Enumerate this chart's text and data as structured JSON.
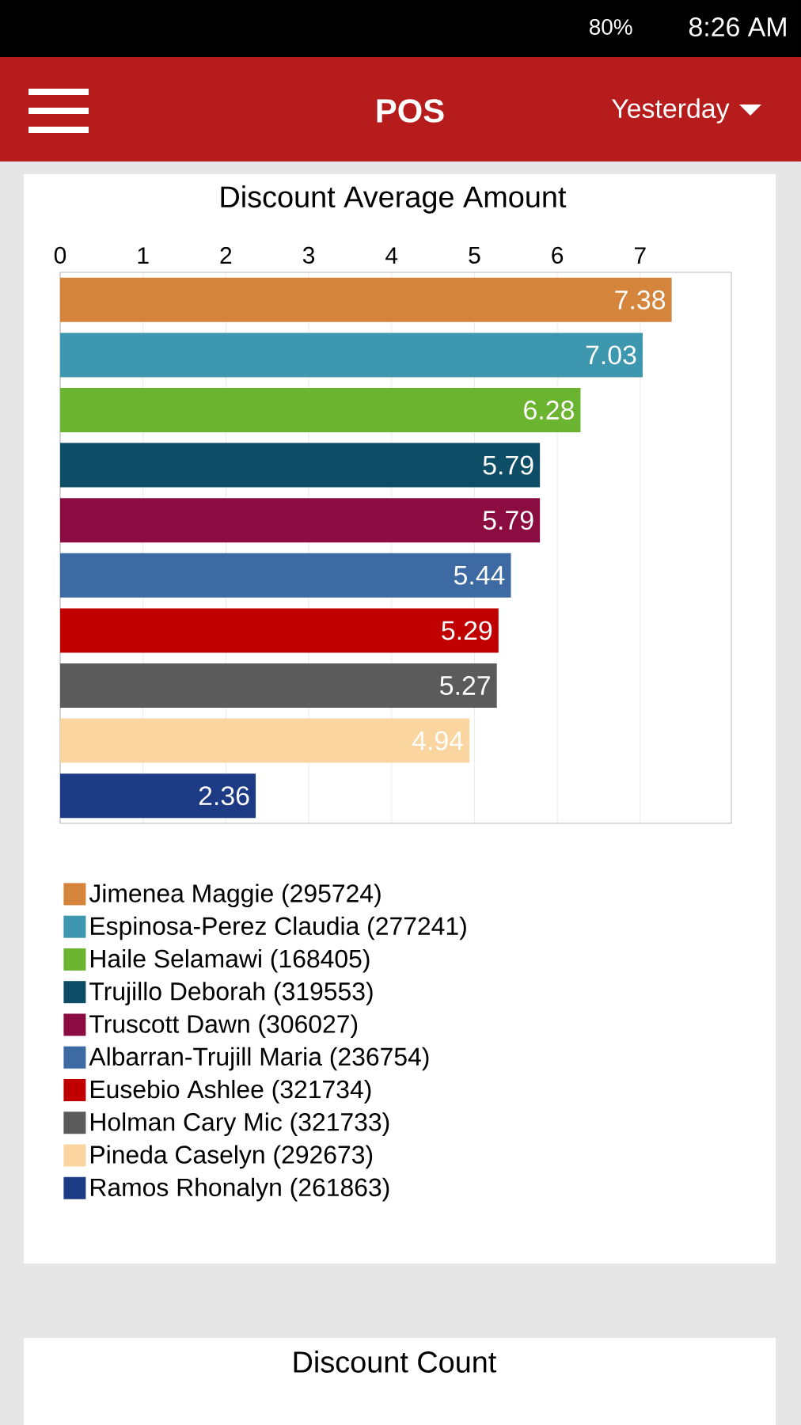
{
  "chart_data": {
    "type": "bar",
    "orientation": "horizontal",
    "title": "Discount Average Amount",
    "categories": [
      null,
      null,
      null,
      null,
      null,
      null,
      null,
      null,
      null,
      null
    ],
    "series": [
      {
        "name": "Jimenea Maggie (295724)",
        "color": "#d4843b",
        "values": [
          7.38,
          null,
          null,
          null,
          null,
          null,
          null,
          null,
          null,
          null
        ]
      },
      {
        "name": "Espinosa-Perez Claudia (277241)",
        "color": "#3d97ae",
        "values": [
          null,
          7.03,
          null,
          null,
          null,
          null,
          null,
          null,
          null,
          null
        ]
      },
      {
        "name": "Haile Selamawi (168405)",
        "color": "#6ab42f",
        "values": [
          null,
          null,
          6.28,
          null,
          null,
          null,
          null,
          null,
          null,
          null
        ]
      },
      {
        "name": "Trujillo Deborah (319553)",
        "color": "#0e4d66",
        "values": [
          null,
          null,
          null,
          5.79,
          null,
          null,
          null,
          null,
          null,
          null
        ]
      },
      {
        "name": "Truscott Dawn (306027)",
        "color": "#8b0c40",
        "values": [
          null,
          null,
          null,
          null,
          5.79,
          null,
          null,
          null,
          null,
          null
        ]
      },
      {
        "name": "Albarran-Trujill Maria (236754)",
        "color": "#3d6aa3",
        "values": [
          null,
          null,
          null,
          null,
          null,
          5.44,
          null,
          null,
          null,
          null
        ]
      },
      {
        "name": "Eusebio Ashlee (321734)",
        "color": "#c00000",
        "values": [
          null,
          null,
          null,
          null,
          null,
          null,
          5.29,
          null,
          null,
          null
        ]
      },
      {
        "name": "Holman Cary Mic (321733)",
        "color": "#5b5b5b",
        "values": [
          null,
          null,
          null,
          null,
          null,
          null,
          null,
          5.27,
          null,
          null
        ]
      },
      {
        "name": "Pineda Caselyn (292673)",
        "color": "#fad5a0",
        "values": [
          null,
          null,
          null,
          null,
          null,
          null,
          null,
          null,
          4.94,
          null
        ]
      },
      {
        "name": "Ramos Rhonalyn (261863)",
        "color": "#1d3a85",
        "values": [
          null,
          null,
          null,
          null,
          null,
          null,
          null,
          null,
          null,
          2.36
        ]
      }
    ],
    "xlim": [
      0,
      8.1
    ],
    "xticks": [
      0,
      1,
      2,
      3,
      4,
      5,
      6,
      7
    ],
    "grid": "x",
    "legend": "bottom",
    "tick_labels": "x",
    "data_labels": true,
    "annotations": [
      "8:26 AM",
      "80%",
      "POS",
      "Yesterday",
      "Discount Count"
    ]
  }
}
